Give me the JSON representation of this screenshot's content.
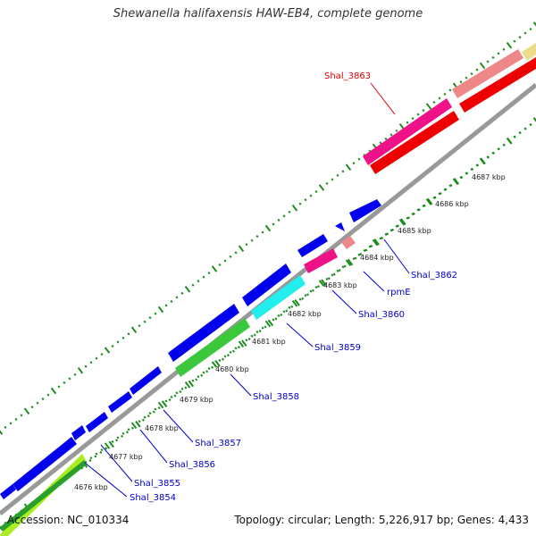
{
  "title": "Shewanella halifaxensis HAW-EB4, complete genome",
  "footer": {
    "accession": "Accession: NC_010334",
    "summary": "Topology: circular; Length: 5,226,917 bp; Genes: 4,433"
  },
  "colors": {
    "backbone": "#999999",
    "tick_green": "#1a8a1a",
    "label_blue": "#0000cc",
    "label_red": "#dd0000"
  },
  "kbp_ticks": [
    "4676 kbp",
    "4677 kbp",
    "4678 kbp",
    "4679 kbp",
    "4680 kbp",
    "4681 kbp",
    "4682 kbp",
    "4683 kbp",
    "4684 kbp",
    "4685 kbp",
    "4686 kbp",
    "4687 kbp"
  ],
  "gene_labels": [
    "Shal_3854",
    "Shal_3855",
    "Shal_3856",
    "Shal_3857",
    "Shal_3858",
    "Shal_3859",
    "Shal_3860",
    "rpmE",
    "Shal_3862"
  ],
  "highlight_label": "Shal_3863"
}
